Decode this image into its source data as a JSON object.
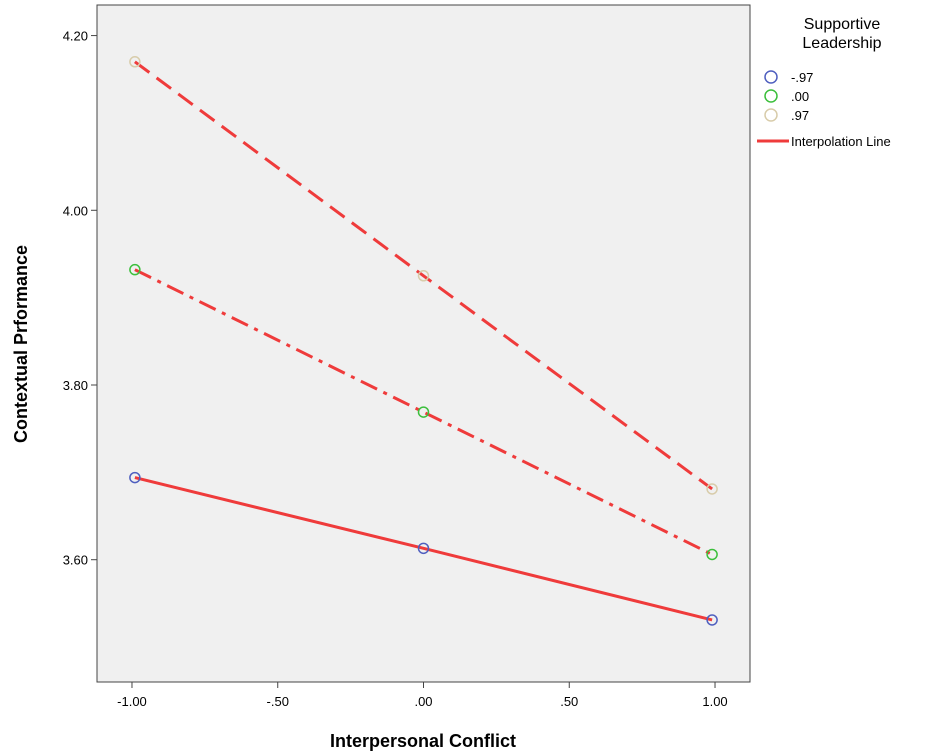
{
  "chart_data": {
    "type": "line",
    "xlabel": "Interpersonal Conflict",
    "ylabel": "Contextual Prformance",
    "xlim": [
      -1.12,
      1.12
    ],
    "ylim": [
      3.46,
      4.235
    ],
    "x_ticks": [
      -1.0,
      -0.5,
      0.0,
      0.5,
      1.0
    ],
    "x_tick_labels": [
      "-1.00",
      "-.50",
      ".00",
      ".50",
      "1.00"
    ],
    "y_ticks": [
      3.6,
      3.8,
      4.0,
      4.2
    ],
    "y_tick_labels": [
      "3.60",
      "3.80",
      "4.00",
      "4.20"
    ],
    "grid": false,
    "legend": {
      "title_lines": [
        "Supportive",
        "Leadership"
      ],
      "placement": "right",
      "line_label": "Interpolation Line"
    },
    "colors": {
      "plot_background": "#f0f0f0",
      "interpolation_line": "#ef3b3b"
    },
    "series": [
      {
        "name": "-.97",
        "marker_color": "#4f5fbf",
        "dash": "solid",
        "x": [
          -0.99,
          0.0,
          0.99
        ],
        "y": [
          3.694,
          3.613,
          3.531
        ]
      },
      {
        "name": ".00",
        "marker_color": "#3cbf3c",
        "dash": "dashdot",
        "x": [
          -0.99,
          0.0,
          0.99
        ],
        "y": [
          3.932,
          3.769,
          3.606
        ]
      },
      {
        "name": ".97",
        "marker_color": "#d8ccaa",
        "dash": "dashed",
        "x": [
          -0.99,
          0.0,
          0.99
        ],
        "y": [
          4.17,
          3.925,
          3.681
        ]
      }
    ]
  }
}
